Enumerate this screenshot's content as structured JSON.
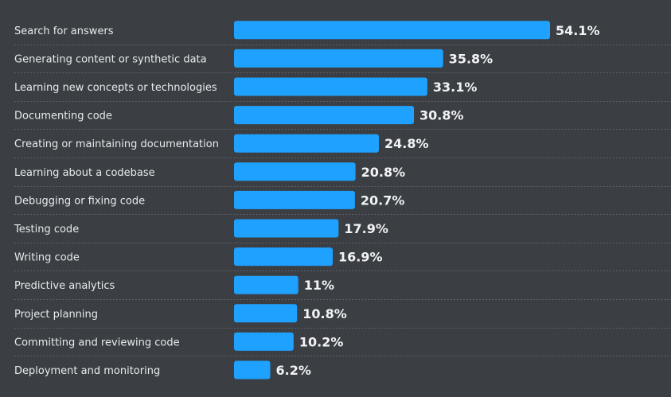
{
  "chart_data": {
    "type": "bar",
    "orientation": "horizontal",
    "title": "",
    "xlabel": "",
    "ylabel": "",
    "value_suffix": "%",
    "bar_color": "#1ea1ff",
    "background_color": "#3b3f44",
    "grid": false,
    "legend": "none",
    "xlim": [
      0,
      54.1
    ],
    "categories": [
      "Search for answers",
      "Generating content or synthetic data",
      "Learning new concepts or technologies",
      "Documenting code",
      "Creating or maintaining documentation",
      "Learning about a codebase",
      "Debugging or fixing code",
      "Testing code",
      "Writing code",
      "Predictive analytics",
      "Project planning",
      "Committing and reviewing code",
      "Deployment and monitoring"
    ],
    "values": [
      54.1,
      35.8,
      33.1,
      30.8,
      24.8,
      20.8,
      20.7,
      17.9,
      16.9,
      11,
      10.8,
      10.2,
      6.2
    ],
    "value_labels": [
      "54.1%",
      "35.8%",
      "33.1%",
      "30.8%",
      "24.8%",
      "20.8%",
      "20.7%",
      "17.9%",
      "16.9%",
      "11%",
      "10.8%",
      "10.2%",
      "6.2%"
    ]
  }
}
